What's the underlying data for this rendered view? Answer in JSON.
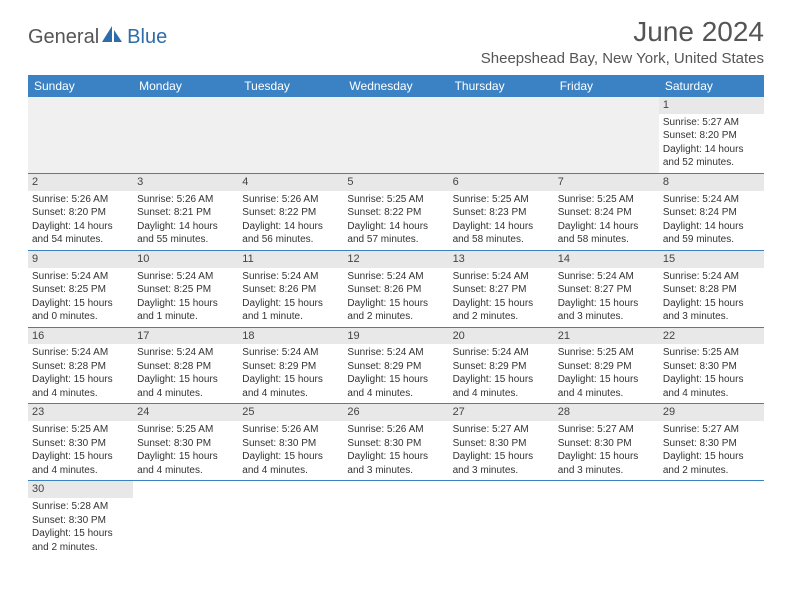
{
  "logo": {
    "text1": "General",
    "text2": "Blue"
  },
  "title": "June 2024",
  "location": "Sheepshead Bay, New York, United States",
  "colors": {
    "header_bg": "#3b82c4",
    "header_text": "#ffffff",
    "daynum_bg": "#e8e8e8",
    "border": "#3b82c4",
    "logo_gray": "#555555",
    "logo_blue": "#2f6da8"
  },
  "dayHeaders": [
    "Sunday",
    "Monday",
    "Tuesday",
    "Wednesday",
    "Thursday",
    "Friday",
    "Saturday"
  ],
  "weeks": [
    [
      null,
      null,
      null,
      null,
      null,
      null,
      {
        "d": "1",
        "sr": "Sunrise: 5:27 AM",
        "ss": "Sunset: 8:20 PM",
        "dl": "Daylight: 14 hours and 52 minutes."
      }
    ],
    [
      {
        "d": "2",
        "sr": "Sunrise: 5:26 AM",
        "ss": "Sunset: 8:20 PM",
        "dl": "Daylight: 14 hours and 54 minutes."
      },
      {
        "d": "3",
        "sr": "Sunrise: 5:26 AM",
        "ss": "Sunset: 8:21 PM",
        "dl": "Daylight: 14 hours and 55 minutes."
      },
      {
        "d": "4",
        "sr": "Sunrise: 5:26 AM",
        "ss": "Sunset: 8:22 PM",
        "dl": "Daylight: 14 hours and 56 minutes."
      },
      {
        "d": "5",
        "sr": "Sunrise: 5:25 AM",
        "ss": "Sunset: 8:22 PM",
        "dl": "Daylight: 14 hours and 57 minutes."
      },
      {
        "d": "6",
        "sr": "Sunrise: 5:25 AM",
        "ss": "Sunset: 8:23 PM",
        "dl": "Daylight: 14 hours and 58 minutes."
      },
      {
        "d": "7",
        "sr": "Sunrise: 5:25 AM",
        "ss": "Sunset: 8:24 PM",
        "dl": "Daylight: 14 hours and 58 minutes."
      },
      {
        "d": "8",
        "sr": "Sunrise: 5:24 AM",
        "ss": "Sunset: 8:24 PM",
        "dl": "Daylight: 14 hours and 59 minutes."
      }
    ],
    [
      {
        "d": "9",
        "sr": "Sunrise: 5:24 AM",
        "ss": "Sunset: 8:25 PM",
        "dl": "Daylight: 15 hours and 0 minutes."
      },
      {
        "d": "10",
        "sr": "Sunrise: 5:24 AM",
        "ss": "Sunset: 8:25 PM",
        "dl": "Daylight: 15 hours and 1 minute."
      },
      {
        "d": "11",
        "sr": "Sunrise: 5:24 AM",
        "ss": "Sunset: 8:26 PM",
        "dl": "Daylight: 15 hours and 1 minute."
      },
      {
        "d": "12",
        "sr": "Sunrise: 5:24 AM",
        "ss": "Sunset: 8:26 PM",
        "dl": "Daylight: 15 hours and 2 minutes."
      },
      {
        "d": "13",
        "sr": "Sunrise: 5:24 AM",
        "ss": "Sunset: 8:27 PM",
        "dl": "Daylight: 15 hours and 2 minutes."
      },
      {
        "d": "14",
        "sr": "Sunrise: 5:24 AM",
        "ss": "Sunset: 8:27 PM",
        "dl": "Daylight: 15 hours and 3 minutes."
      },
      {
        "d": "15",
        "sr": "Sunrise: 5:24 AM",
        "ss": "Sunset: 8:28 PM",
        "dl": "Daylight: 15 hours and 3 minutes."
      }
    ],
    [
      {
        "d": "16",
        "sr": "Sunrise: 5:24 AM",
        "ss": "Sunset: 8:28 PM",
        "dl": "Daylight: 15 hours and 4 minutes."
      },
      {
        "d": "17",
        "sr": "Sunrise: 5:24 AM",
        "ss": "Sunset: 8:28 PM",
        "dl": "Daylight: 15 hours and 4 minutes."
      },
      {
        "d": "18",
        "sr": "Sunrise: 5:24 AM",
        "ss": "Sunset: 8:29 PM",
        "dl": "Daylight: 15 hours and 4 minutes."
      },
      {
        "d": "19",
        "sr": "Sunrise: 5:24 AM",
        "ss": "Sunset: 8:29 PM",
        "dl": "Daylight: 15 hours and 4 minutes."
      },
      {
        "d": "20",
        "sr": "Sunrise: 5:24 AM",
        "ss": "Sunset: 8:29 PM",
        "dl": "Daylight: 15 hours and 4 minutes."
      },
      {
        "d": "21",
        "sr": "Sunrise: 5:25 AM",
        "ss": "Sunset: 8:29 PM",
        "dl": "Daylight: 15 hours and 4 minutes."
      },
      {
        "d": "22",
        "sr": "Sunrise: 5:25 AM",
        "ss": "Sunset: 8:30 PM",
        "dl": "Daylight: 15 hours and 4 minutes."
      }
    ],
    [
      {
        "d": "23",
        "sr": "Sunrise: 5:25 AM",
        "ss": "Sunset: 8:30 PM",
        "dl": "Daylight: 15 hours and 4 minutes."
      },
      {
        "d": "24",
        "sr": "Sunrise: 5:25 AM",
        "ss": "Sunset: 8:30 PM",
        "dl": "Daylight: 15 hours and 4 minutes."
      },
      {
        "d": "25",
        "sr": "Sunrise: 5:26 AM",
        "ss": "Sunset: 8:30 PM",
        "dl": "Daylight: 15 hours and 4 minutes."
      },
      {
        "d": "26",
        "sr": "Sunrise: 5:26 AM",
        "ss": "Sunset: 8:30 PM",
        "dl": "Daylight: 15 hours and 3 minutes."
      },
      {
        "d": "27",
        "sr": "Sunrise: 5:27 AM",
        "ss": "Sunset: 8:30 PM",
        "dl": "Daylight: 15 hours and 3 minutes."
      },
      {
        "d": "28",
        "sr": "Sunrise: 5:27 AM",
        "ss": "Sunset: 8:30 PM",
        "dl": "Daylight: 15 hours and 3 minutes."
      },
      {
        "d": "29",
        "sr": "Sunrise: 5:27 AM",
        "ss": "Sunset: 8:30 PM",
        "dl": "Daylight: 15 hours and 2 minutes."
      }
    ],
    [
      {
        "d": "30",
        "sr": "Sunrise: 5:28 AM",
        "ss": "Sunset: 8:30 PM",
        "dl": "Daylight: 15 hours and 2 minutes."
      },
      null,
      null,
      null,
      null,
      null,
      null
    ]
  ]
}
